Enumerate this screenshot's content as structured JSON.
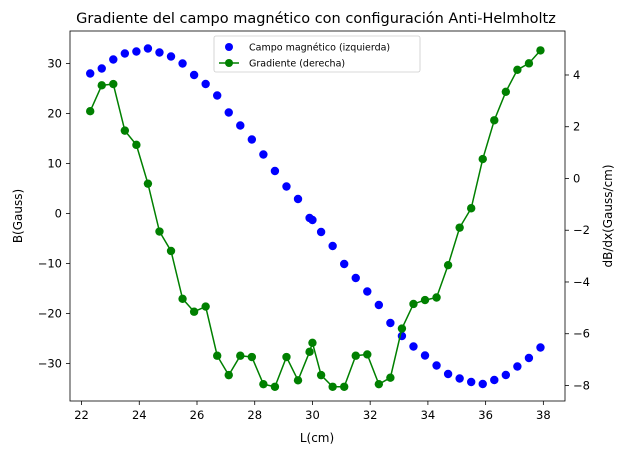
{
  "chart_data": {
    "type": "scatter",
    "title": "Gradiente del campo magnético con configuración Anti-Helmholtz",
    "xlabel": "L(cm)",
    "ylabel_left": "B(Gauss)",
    "ylabel_right": "dB/dx(Gauss/cm)",
    "xlim": [
      21.6,
      38.75
    ],
    "ylim_left": [
      -37.5,
      36.5
    ],
    "ylim_right": [
      -8.6,
      5.7
    ],
    "x_ticks": [
      22,
      24,
      26,
      28,
      30,
      32,
      34,
      36,
      38
    ],
    "y_ticks_left": [
      -30,
      -20,
      -10,
      0,
      10,
      20,
      30
    ],
    "y_ticks_right": [
      -8,
      -6,
      -4,
      -2,
      0,
      2,
      4
    ],
    "grid": false,
    "legend_position": "upper-center",
    "series": [
      {
        "name": "Campo magnético (izquierda)",
        "axis": "left",
        "style": "markers",
        "color": "#0000ff",
        "points": [
          [
            22.3,
            28
          ],
          [
            22.7,
            29
          ],
          [
            23.1,
            30.8
          ],
          [
            23.5,
            32
          ],
          [
            23.9,
            32.4
          ],
          [
            24.3,
            33
          ],
          [
            24.7,
            32.2
          ],
          [
            25.1,
            31.4
          ],
          [
            25.5,
            30
          ],
          [
            25.9,
            27.7
          ],
          [
            26.3,
            25.9
          ],
          [
            26.7,
            23.6
          ],
          [
            27.1,
            20.2
          ],
          [
            27.5,
            17.6
          ],
          [
            27.9,
            14.8
          ],
          [
            28.3,
            11.8
          ],
          [
            28.7,
            8.5
          ],
          [
            29.1,
            5.4
          ],
          [
            29.5,
            2.9
          ],
          [
            29.9,
            -0.9
          ],
          [
            30.0,
            -1.3
          ],
          [
            30.3,
            -3.7
          ],
          [
            30.7,
            -6.5
          ],
          [
            31.1,
            -10.1
          ],
          [
            31.5,
            -12.9
          ],
          [
            31.9,
            -15.6
          ],
          [
            32.3,
            -18.3
          ],
          [
            32.7,
            -21.9
          ],
          [
            33.1,
            -24.5
          ],
          [
            33.5,
            -26.6
          ],
          [
            33.9,
            -28.4
          ],
          [
            34.3,
            -30.4
          ],
          [
            34.7,
            -32.1
          ],
          [
            35.1,
            -33
          ],
          [
            35.5,
            -33.7
          ],
          [
            35.9,
            -34.1
          ],
          [
            36.3,
            -33.3
          ],
          [
            36.7,
            -32.3
          ],
          [
            37.1,
            -30.6
          ],
          [
            37.5,
            -28.9
          ],
          [
            37.9,
            -26.8
          ]
        ]
      },
      {
        "name": "Gradiente (derecha)",
        "axis": "right",
        "style": "line+markers",
        "color": "#008000",
        "points": [
          [
            22.3,
            2.6
          ],
          [
            22.7,
            3.6
          ],
          [
            23.1,
            3.65
          ],
          [
            23.5,
            1.85
          ],
          [
            23.9,
            1.3
          ],
          [
            24.3,
            -0.2
          ],
          [
            24.7,
            -2.05
          ],
          [
            25.1,
            -2.8
          ],
          [
            25.5,
            -4.65
          ],
          [
            25.9,
            -5.15
          ],
          [
            26.3,
            -4.95
          ],
          [
            26.7,
            -6.85
          ],
          [
            27.1,
            -7.6
          ],
          [
            27.5,
            -6.85
          ],
          [
            27.9,
            -6.9
          ],
          [
            28.3,
            -7.95
          ],
          [
            28.7,
            -8.05
          ],
          [
            29.1,
            -6.9
          ],
          [
            29.5,
            -7.8
          ],
          [
            29.9,
            -6.7
          ],
          [
            30.0,
            -6.35
          ],
          [
            30.3,
            -7.6
          ],
          [
            30.7,
            -8.05
          ],
          [
            31.1,
            -8.05
          ],
          [
            31.5,
            -6.85
          ],
          [
            31.9,
            -6.8
          ],
          [
            32.3,
            -7.95
          ],
          [
            32.7,
            -7.7
          ],
          [
            33.1,
            -5.8
          ],
          [
            33.5,
            -4.85
          ],
          [
            33.9,
            -4.7
          ],
          [
            34.3,
            -4.6
          ],
          [
            34.7,
            -3.35
          ],
          [
            35.1,
            -1.9
          ],
          [
            35.5,
            -1.15
          ],
          [
            35.9,
            0.75
          ],
          [
            36.3,
            2.25
          ],
          [
            36.7,
            3.35
          ],
          [
            37.1,
            4.2
          ],
          [
            37.5,
            4.45
          ],
          [
            37.9,
            4.95
          ]
        ]
      }
    ]
  }
}
